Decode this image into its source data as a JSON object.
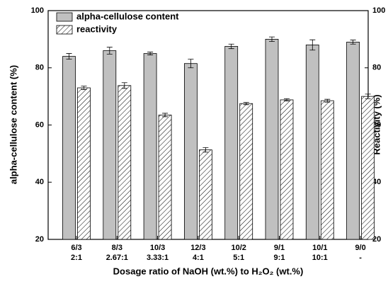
{
  "chart_data": {
    "type": "bar",
    "x_label": "Dosage ratio of NaOH (wt.%) to H₂O₂ (wt.%)",
    "y_label": "alpha-cellulose content (%)",
    "y2_label": "Reactivity (%)",
    "categories": [
      [
        "6/3",
        "2:1"
      ],
      [
        "8/3",
        "2.67:1"
      ],
      [
        "10/3",
        "3.33:1"
      ],
      [
        "12/3",
        "4:1"
      ],
      [
        "10/2",
        "5:1"
      ],
      [
        "9/1",
        "9:1"
      ],
      [
        "10/1",
        "10:1"
      ],
      [
        "9/0",
        "-"
      ]
    ],
    "series": [
      {
        "name": "alpha-cellulose content",
        "color": "#c0c0c0",
        "hatch": false,
        "values": [
          84,
          86,
          85,
          81.5,
          87.5,
          90,
          88,
          89
        ],
        "errors": [
          1,
          1.2,
          0.5,
          1.5,
          0.8,
          0.8,
          1.8,
          0.7
        ]
      },
      {
        "name": "reactivity",
        "color": "#ffffff",
        "hatch": true,
        "axis": "y2",
        "values": [
          73,
          73.8,
          63.5,
          51.3,
          67.5,
          68.8,
          68.5,
          70
        ],
        "errors": [
          0.6,
          1,
          0.6,
          0.8,
          0.4,
          0.4,
          0.5,
          0.8
        ]
      }
    ],
    "ylim": [
      20,
      100
    ],
    "yticks": [
      20,
      40,
      60,
      80,
      100
    ],
    "y2lim": [
      20,
      100
    ],
    "y2ticks": [
      20,
      40,
      60,
      80,
      100
    ],
    "legend": "upper left"
  }
}
